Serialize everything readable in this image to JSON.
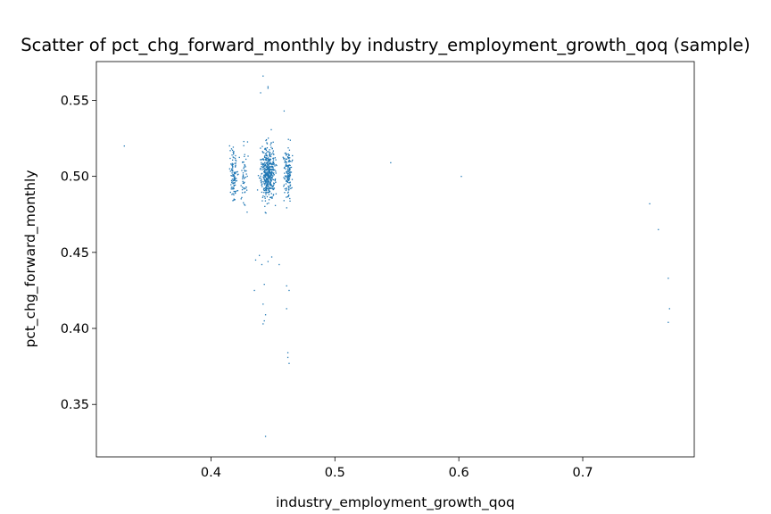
{
  "chart_data": {
    "type": "scatter",
    "title": "Scatter of pct_chg_forward_monthly by industry_employment_growth_qoq (sample)",
    "xlabel": "industry_employment_growth_qoq",
    "ylabel": "pct_chg_forward_monthly",
    "xlim": [
      0.3075,
      0.79
    ],
    "ylim": [
      0.3155,
      0.5755
    ],
    "xticks": [
      0.4,
      0.5,
      0.6,
      0.7
    ],
    "xtick_labels": [
      "0.4",
      "0.5",
      "0.6",
      "0.7"
    ],
    "yticks": [
      0.35,
      0.4,
      0.45,
      0.5,
      0.55
    ],
    "ytick_labels": [
      "0.35",
      "0.40",
      "0.45",
      "0.50",
      "0.55"
    ],
    "grid": false,
    "legend": "none",
    "color": "#1f77b4",
    "clusters": [
      {
        "x_center": 0.418,
        "x_spread": 0.003,
        "y_center": 0.502,
        "y_spread": 0.014,
        "y_min": 0.468,
        "y_max": 0.535,
        "count": 110
      },
      {
        "x_center": 0.427,
        "x_spread": 0.0025,
        "y_center": 0.5,
        "y_spread": 0.015,
        "y_min": 0.465,
        "y_max": 0.535,
        "count": 55
      },
      {
        "x_center": 0.446,
        "x_spread": 0.005,
        "y_center": 0.502,
        "y_spread": 0.014,
        "y_min": 0.455,
        "y_max": 0.545,
        "count": 460
      },
      {
        "x_center": 0.462,
        "x_spread": 0.003,
        "y_center": 0.502,
        "y_spread": 0.015,
        "y_min": 0.462,
        "y_max": 0.542,
        "count": 150
      }
    ],
    "points": [
      {
        "x": 0.33,
        "y": 0.52
      },
      {
        "x": 0.545,
        "y": 0.509
      },
      {
        "x": 0.602,
        "y": 0.5
      },
      {
        "x": 0.754,
        "y": 0.482
      },
      {
        "x": 0.761,
        "y": 0.465
      },
      {
        "x": 0.769,
        "y": 0.433
      },
      {
        "x": 0.77,
        "y": 0.413
      },
      {
        "x": 0.769,
        "y": 0.404
      },
      {
        "x": 0.444,
        "y": 0.329
      },
      {
        "x": 0.442,
        "y": 0.566
      },
      {
        "x": 0.446,
        "y": 0.559
      },
      {
        "x": 0.446,
        "y": 0.558
      },
      {
        "x": 0.44,
        "y": 0.555
      },
      {
        "x": 0.459,
        "y": 0.543
      },
      {
        "x": 0.436,
        "y": 0.445
      },
      {
        "x": 0.439,
        "y": 0.448
      },
      {
        "x": 0.449,
        "y": 0.447
      },
      {
        "x": 0.441,
        "y": 0.442
      },
      {
        "x": 0.455,
        "y": 0.442
      },
      {
        "x": 0.446,
        "y": 0.444
      },
      {
        "x": 0.435,
        "y": 0.425
      },
      {
        "x": 0.443,
        "y": 0.429
      },
      {
        "x": 0.442,
        "y": 0.416
      },
      {
        "x": 0.444,
        "y": 0.409
      },
      {
        "x": 0.443,
        "y": 0.405
      },
      {
        "x": 0.442,
        "y": 0.403
      },
      {
        "x": 0.461,
        "y": 0.428
      },
      {
        "x": 0.463,
        "y": 0.425
      },
      {
        "x": 0.461,
        "y": 0.413
      },
      {
        "x": 0.462,
        "y": 0.384
      },
      {
        "x": 0.462,
        "y": 0.381
      },
      {
        "x": 0.463,
        "y": 0.377
      }
    ]
  }
}
